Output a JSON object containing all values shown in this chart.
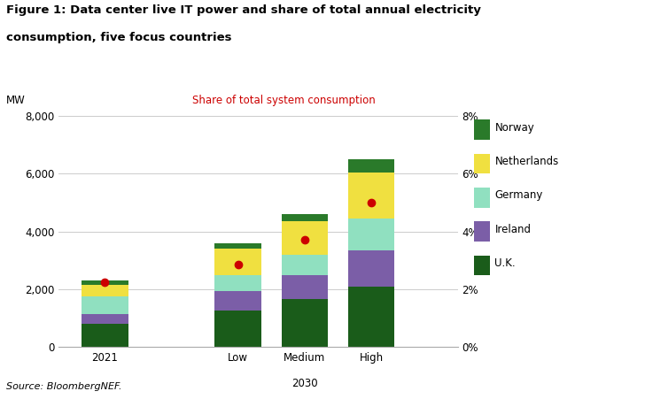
{
  "title_line1": "Figure 1: Data center live IT power and share of total annual electricity",
  "title_line2": "consumption, five focus countries",
  "subtitle_right": "Share of total system consumption",
  "ylabel_left": "MW",
  "source": "Source: BloombergNEF.",
  "bar_labels": [
    "2021",
    "Low",
    "Medium",
    "High"
  ],
  "bar_positions": [
    0,
    2,
    3,
    4
  ],
  "segments": {
    "UK": [
      800,
      1250,
      1650,
      2100
    ],
    "Ireland": [
      350,
      700,
      850,
      1250
    ],
    "Germany": [
      600,
      550,
      700,
      1100
    ],
    "Netherlands": [
      400,
      900,
      1150,
      1600
    ],
    "Norway": [
      150,
      200,
      250,
      450
    ]
  },
  "colors": {
    "UK": "#1a5c1a",
    "Ireland": "#7b5ea7",
    "Germany": "#90e0c0",
    "Netherlands": "#f0e040",
    "Norway": "#2a7a2a"
  },
  "dot_values_mw": [
    2250,
    2850,
    3700,
    5000
  ],
  "ylim_left": [
    0,
    8000
  ],
  "ylim_right": [
    0,
    8
  ],
  "yticks_left": [
    0,
    2000,
    4000,
    6000,
    8000
  ],
  "yticks_right": [
    0,
    2,
    4,
    6,
    8
  ],
  "xlim": [
    -0.7,
    5.3
  ],
  "background_color": "#ffffff",
  "dot_color": "#cc0000",
  "grid_color": "#cccccc",
  "bar_width": 0.7
}
